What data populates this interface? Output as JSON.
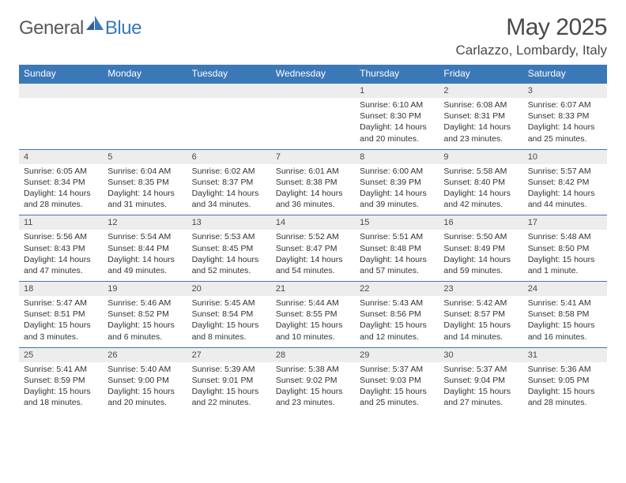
{
  "brand": {
    "part1": "General",
    "part2": "Blue"
  },
  "title": "May 2025",
  "location": "Carlazzo, Lombardy, Italy",
  "colors": {
    "header_bg": "#3b78b8",
    "header_text": "#ffffff",
    "daynum_bg": "#ededed",
    "row_divider": "#3b78b8",
    "body_text": "#333333",
    "title_text": "#4a4a4a"
  },
  "weekdays": [
    "Sunday",
    "Monday",
    "Tuesday",
    "Wednesday",
    "Thursday",
    "Friday",
    "Saturday"
  ],
  "weeks": [
    [
      {
        "n": "",
        "sunrise": "",
        "sunset": "",
        "daylight1": "",
        "daylight2": ""
      },
      {
        "n": "",
        "sunrise": "",
        "sunset": "",
        "daylight1": "",
        "daylight2": ""
      },
      {
        "n": "",
        "sunrise": "",
        "sunset": "",
        "daylight1": "",
        "daylight2": ""
      },
      {
        "n": "",
        "sunrise": "",
        "sunset": "",
        "daylight1": "",
        "daylight2": ""
      },
      {
        "n": "1",
        "sunrise": "Sunrise: 6:10 AM",
        "sunset": "Sunset: 8:30 PM",
        "daylight1": "Daylight: 14 hours",
        "daylight2": "and 20 minutes."
      },
      {
        "n": "2",
        "sunrise": "Sunrise: 6:08 AM",
        "sunset": "Sunset: 8:31 PM",
        "daylight1": "Daylight: 14 hours",
        "daylight2": "and 23 minutes."
      },
      {
        "n": "3",
        "sunrise": "Sunrise: 6:07 AM",
        "sunset": "Sunset: 8:33 PM",
        "daylight1": "Daylight: 14 hours",
        "daylight2": "and 25 minutes."
      }
    ],
    [
      {
        "n": "4",
        "sunrise": "Sunrise: 6:05 AM",
        "sunset": "Sunset: 8:34 PM",
        "daylight1": "Daylight: 14 hours",
        "daylight2": "and 28 minutes."
      },
      {
        "n": "5",
        "sunrise": "Sunrise: 6:04 AM",
        "sunset": "Sunset: 8:35 PM",
        "daylight1": "Daylight: 14 hours",
        "daylight2": "and 31 minutes."
      },
      {
        "n": "6",
        "sunrise": "Sunrise: 6:02 AM",
        "sunset": "Sunset: 8:37 PM",
        "daylight1": "Daylight: 14 hours",
        "daylight2": "and 34 minutes."
      },
      {
        "n": "7",
        "sunrise": "Sunrise: 6:01 AM",
        "sunset": "Sunset: 8:38 PM",
        "daylight1": "Daylight: 14 hours",
        "daylight2": "and 36 minutes."
      },
      {
        "n": "8",
        "sunrise": "Sunrise: 6:00 AM",
        "sunset": "Sunset: 8:39 PM",
        "daylight1": "Daylight: 14 hours",
        "daylight2": "and 39 minutes."
      },
      {
        "n": "9",
        "sunrise": "Sunrise: 5:58 AM",
        "sunset": "Sunset: 8:40 PM",
        "daylight1": "Daylight: 14 hours",
        "daylight2": "and 42 minutes."
      },
      {
        "n": "10",
        "sunrise": "Sunrise: 5:57 AM",
        "sunset": "Sunset: 8:42 PM",
        "daylight1": "Daylight: 14 hours",
        "daylight2": "and 44 minutes."
      }
    ],
    [
      {
        "n": "11",
        "sunrise": "Sunrise: 5:56 AM",
        "sunset": "Sunset: 8:43 PM",
        "daylight1": "Daylight: 14 hours",
        "daylight2": "and 47 minutes."
      },
      {
        "n": "12",
        "sunrise": "Sunrise: 5:54 AM",
        "sunset": "Sunset: 8:44 PM",
        "daylight1": "Daylight: 14 hours",
        "daylight2": "and 49 minutes."
      },
      {
        "n": "13",
        "sunrise": "Sunrise: 5:53 AM",
        "sunset": "Sunset: 8:45 PM",
        "daylight1": "Daylight: 14 hours",
        "daylight2": "and 52 minutes."
      },
      {
        "n": "14",
        "sunrise": "Sunrise: 5:52 AM",
        "sunset": "Sunset: 8:47 PM",
        "daylight1": "Daylight: 14 hours",
        "daylight2": "and 54 minutes."
      },
      {
        "n": "15",
        "sunrise": "Sunrise: 5:51 AM",
        "sunset": "Sunset: 8:48 PM",
        "daylight1": "Daylight: 14 hours",
        "daylight2": "and 57 minutes."
      },
      {
        "n": "16",
        "sunrise": "Sunrise: 5:50 AM",
        "sunset": "Sunset: 8:49 PM",
        "daylight1": "Daylight: 14 hours",
        "daylight2": "and 59 minutes."
      },
      {
        "n": "17",
        "sunrise": "Sunrise: 5:48 AM",
        "sunset": "Sunset: 8:50 PM",
        "daylight1": "Daylight: 15 hours",
        "daylight2": "and 1 minute."
      }
    ],
    [
      {
        "n": "18",
        "sunrise": "Sunrise: 5:47 AM",
        "sunset": "Sunset: 8:51 PM",
        "daylight1": "Daylight: 15 hours",
        "daylight2": "and 3 minutes."
      },
      {
        "n": "19",
        "sunrise": "Sunrise: 5:46 AM",
        "sunset": "Sunset: 8:52 PM",
        "daylight1": "Daylight: 15 hours",
        "daylight2": "and 6 minutes."
      },
      {
        "n": "20",
        "sunrise": "Sunrise: 5:45 AM",
        "sunset": "Sunset: 8:54 PM",
        "daylight1": "Daylight: 15 hours",
        "daylight2": "and 8 minutes."
      },
      {
        "n": "21",
        "sunrise": "Sunrise: 5:44 AM",
        "sunset": "Sunset: 8:55 PM",
        "daylight1": "Daylight: 15 hours",
        "daylight2": "and 10 minutes."
      },
      {
        "n": "22",
        "sunrise": "Sunrise: 5:43 AM",
        "sunset": "Sunset: 8:56 PM",
        "daylight1": "Daylight: 15 hours",
        "daylight2": "and 12 minutes."
      },
      {
        "n": "23",
        "sunrise": "Sunrise: 5:42 AM",
        "sunset": "Sunset: 8:57 PM",
        "daylight1": "Daylight: 15 hours",
        "daylight2": "and 14 minutes."
      },
      {
        "n": "24",
        "sunrise": "Sunrise: 5:41 AM",
        "sunset": "Sunset: 8:58 PM",
        "daylight1": "Daylight: 15 hours",
        "daylight2": "and 16 minutes."
      }
    ],
    [
      {
        "n": "25",
        "sunrise": "Sunrise: 5:41 AM",
        "sunset": "Sunset: 8:59 PM",
        "daylight1": "Daylight: 15 hours",
        "daylight2": "and 18 minutes."
      },
      {
        "n": "26",
        "sunrise": "Sunrise: 5:40 AM",
        "sunset": "Sunset: 9:00 PM",
        "daylight1": "Daylight: 15 hours",
        "daylight2": "and 20 minutes."
      },
      {
        "n": "27",
        "sunrise": "Sunrise: 5:39 AM",
        "sunset": "Sunset: 9:01 PM",
        "daylight1": "Daylight: 15 hours",
        "daylight2": "and 22 minutes."
      },
      {
        "n": "28",
        "sunrise": "Sunrise: 5:38 AM",
        "sunset": "Sunset: 9:02 PM",
        "daylight1": "Daylight: 15 hours",
        "daylight2": "and 23 minutes."
      },
      {
        "n": "29",
        "sunrise": "Sunrise: 5:37 AM",
        "sunset": "Sunset: 9:03 PM",
        "daylight1": "Daylight: 15 hours",
        "daylight2": "and 25 minutes."
      },
      {
        "n": "30",
        "sunrise": "Sunrise: 5:37 AM",
        "sunset": "Sunset: 9:04 PM",
        "daylight1": "Daylight: 15 hours",
        "daylight2": "and 27 minutes."
      },
      {
        "n": "31",
        "sunrise": "Sunrise: 5:36 AM",
        "sunset": "Sunset: 9:05 PM",
        "daylight1": "Daylight: 15 hours",
        "daylight2": "and 28 minutes."
      }
    ]
  ]
}
